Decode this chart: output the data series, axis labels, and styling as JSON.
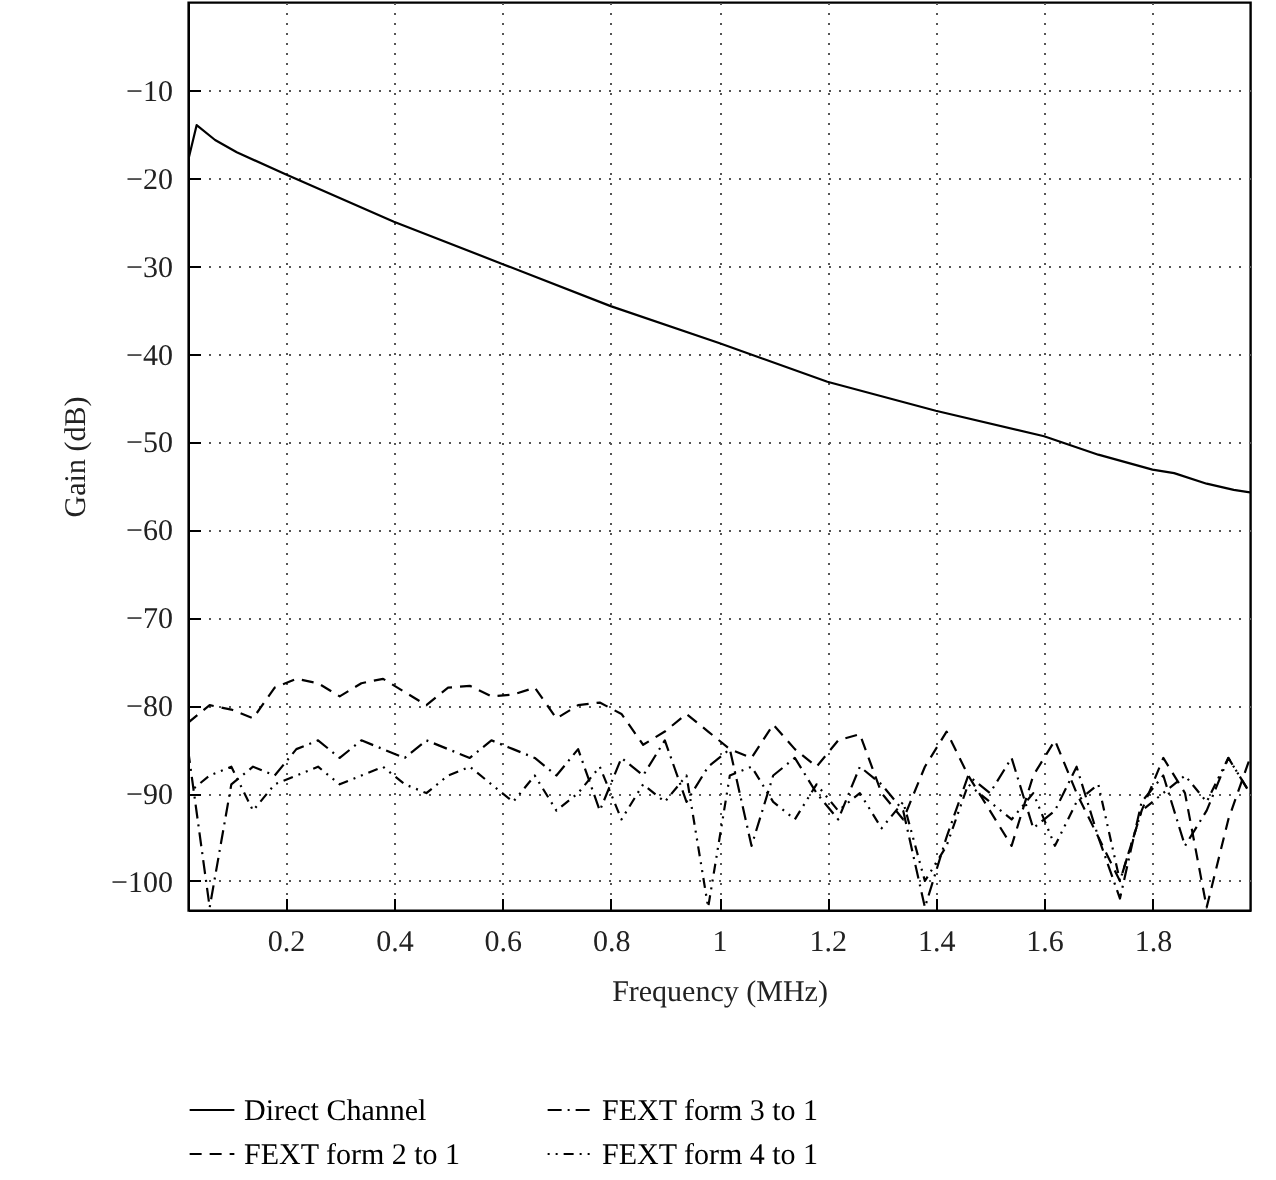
{
  "chart_data": {
    "type": "line",
    "xlabel": "Frequency (MHz)",
    "ylabel": "Gain (dB)",
    "xlim": [
      0.02,
      1.98
    ],
    "ylim": [
      -103.3,
      0
    ],
    "xticks": [
      0.2,
      0.4,
      0.6,
      0.8,
      1,
      1.2,
      1.4,
      1.6,
      1.8
    ],
    "yticks": [
      -100,
      -90,
      -80,
      -70,
      -60,
      -50,
      -40,
      -30,
      -20,
      -10
    ],
    "grid": true,
    "legend": "bottom",
    "x": [
      0.02,
      0.06,
      0.1,
      0.14,
      0.18,
      0.22,
      0.26,
      0.3,
      0.34,
      0.38,
      0.42,
      0.46,
      0.5,
      0.54,
      0.58,
      0.62,
      0.66,
      0.7,
      0.74,
      0.78,
      0.82,
      0.86,
      0.9,
      0.94,
      0.98,
      1.02,
      1.06,
      1.1,
      1.14,
      1.18,
      1.22,
      1.26,
      1.3,
      1.34,
      1.38,
      1.42,
      1.46,
      1.5,
      1.54,
      1.58,
      1.62,
      1.66,
      1.7,
      1.74,
      1.78,
      1.82,
      1.86,
      1.9,
      1.94,
      1.98
    ],
    "series": [
      {
        "name": "Direct Channel",
        "color": "#000000",
        "line_style": "solid",
        "x": [
          0.02,
          0.036,
          0.07,
          0.11,
          0.2,
          0.4,
          0.6,
          0.8,
          1.0,
          1.2,
          1.4,
          1.6,
          1.7,
          1.8,
          1.84,
          1.9,
          1.95,
          1.98
        ],
        "values": [
          -18.1,
          -14,
          -15.7,
          -17.1,
          -19.6,
          -25,
          -29.8,
          -34.6,
          -38.8,
          -43.2,
          -46.5,
          -49.4,
          -51.5,
          -53.2,
          -53.6,
          -54.8,
          -55.5,
          -55.8
        ]
      },
      {
        "name": "FEXT form 2 to 1",
        "color": "#000000",
        "line_style": "dashed",
        "values": [
          -82,
          -80,
          -80.5,
          -81.5,
          -78,
          -77,
          -77.5,
          -79,
          -77.5,
          -77,
          -78.5,
          -80,
          -78,
          -77.8,
          -79,
          -78.8,
          -78,
          -81.5,
          -80,
          -79.7,
          -81,
          -84.5,
          -83,
          -81,
          -83,
          -85,
          -86,
          -82.2,
          -85,
          -87,
          -84,
          -83.3,
          -90,
          -93,
          -87,
          -83,
          -88,
          -92,
          -96,
          -88,
          -84,
          -90,
          -95,
          -100,
          -92,
          -86,
          -90,
          -103,
          -93,
          -86
        ]
      },
      {
        "name": "FEXT form 3 to 1",
        "color": "#000000",
        "line_style": "dashdot",
        "values": [
          -85,
          -103,
          -89,
          -87,
          -88,
          -85,
          -84,
          -86,
          -84,
          -85,
          -86,
          -84,
          -85,
          -86,
          -84,
          -85,
          -86,
          -88,
          -85,
          -92,
          -86,
          -88,
          -84,
          -91,
          -87,
          -85,
          -96,
          -88,
          -86,
          -90,
          -93,
          -87,
          -89,
          -92,
          -103,
          -95,
          -88,
          -90,
          -86,
          -94,
          -92,
          -87,
          -95,
          -102,
          -91,
          -88,
          -96,
          -92,
          -86,
          -90
        ]
      },
      {
        "name": "FEXT form 4 to 1",
        "color": "#000000",
        "line_style": "dotted",
        "values": [
          -90,
          -88,
          -87,
          -92,
          -89,
          -88,
          -87,
          -89,
          -88,
          -87,
          -89,
          -90,
          -88,
          -87,
          -89,
          -91,
          -88,
          -92,
          -90,
          -87,
          -93,
          -89,
          -91,
          -88,
          -103,
          -88,
          -87,
          -91,
          -93,
          -89,
          -92,
          -90,
          -94,
          -91,
          -100,
          -96,
          -89,
          -91,
          -93,
          -90,
          -96,
          -91,
          -89,
          -100,
          -92,
          -90,
          -88,
          -91,
          -86,
          -90
        ]
      }
    ]
  }
}
